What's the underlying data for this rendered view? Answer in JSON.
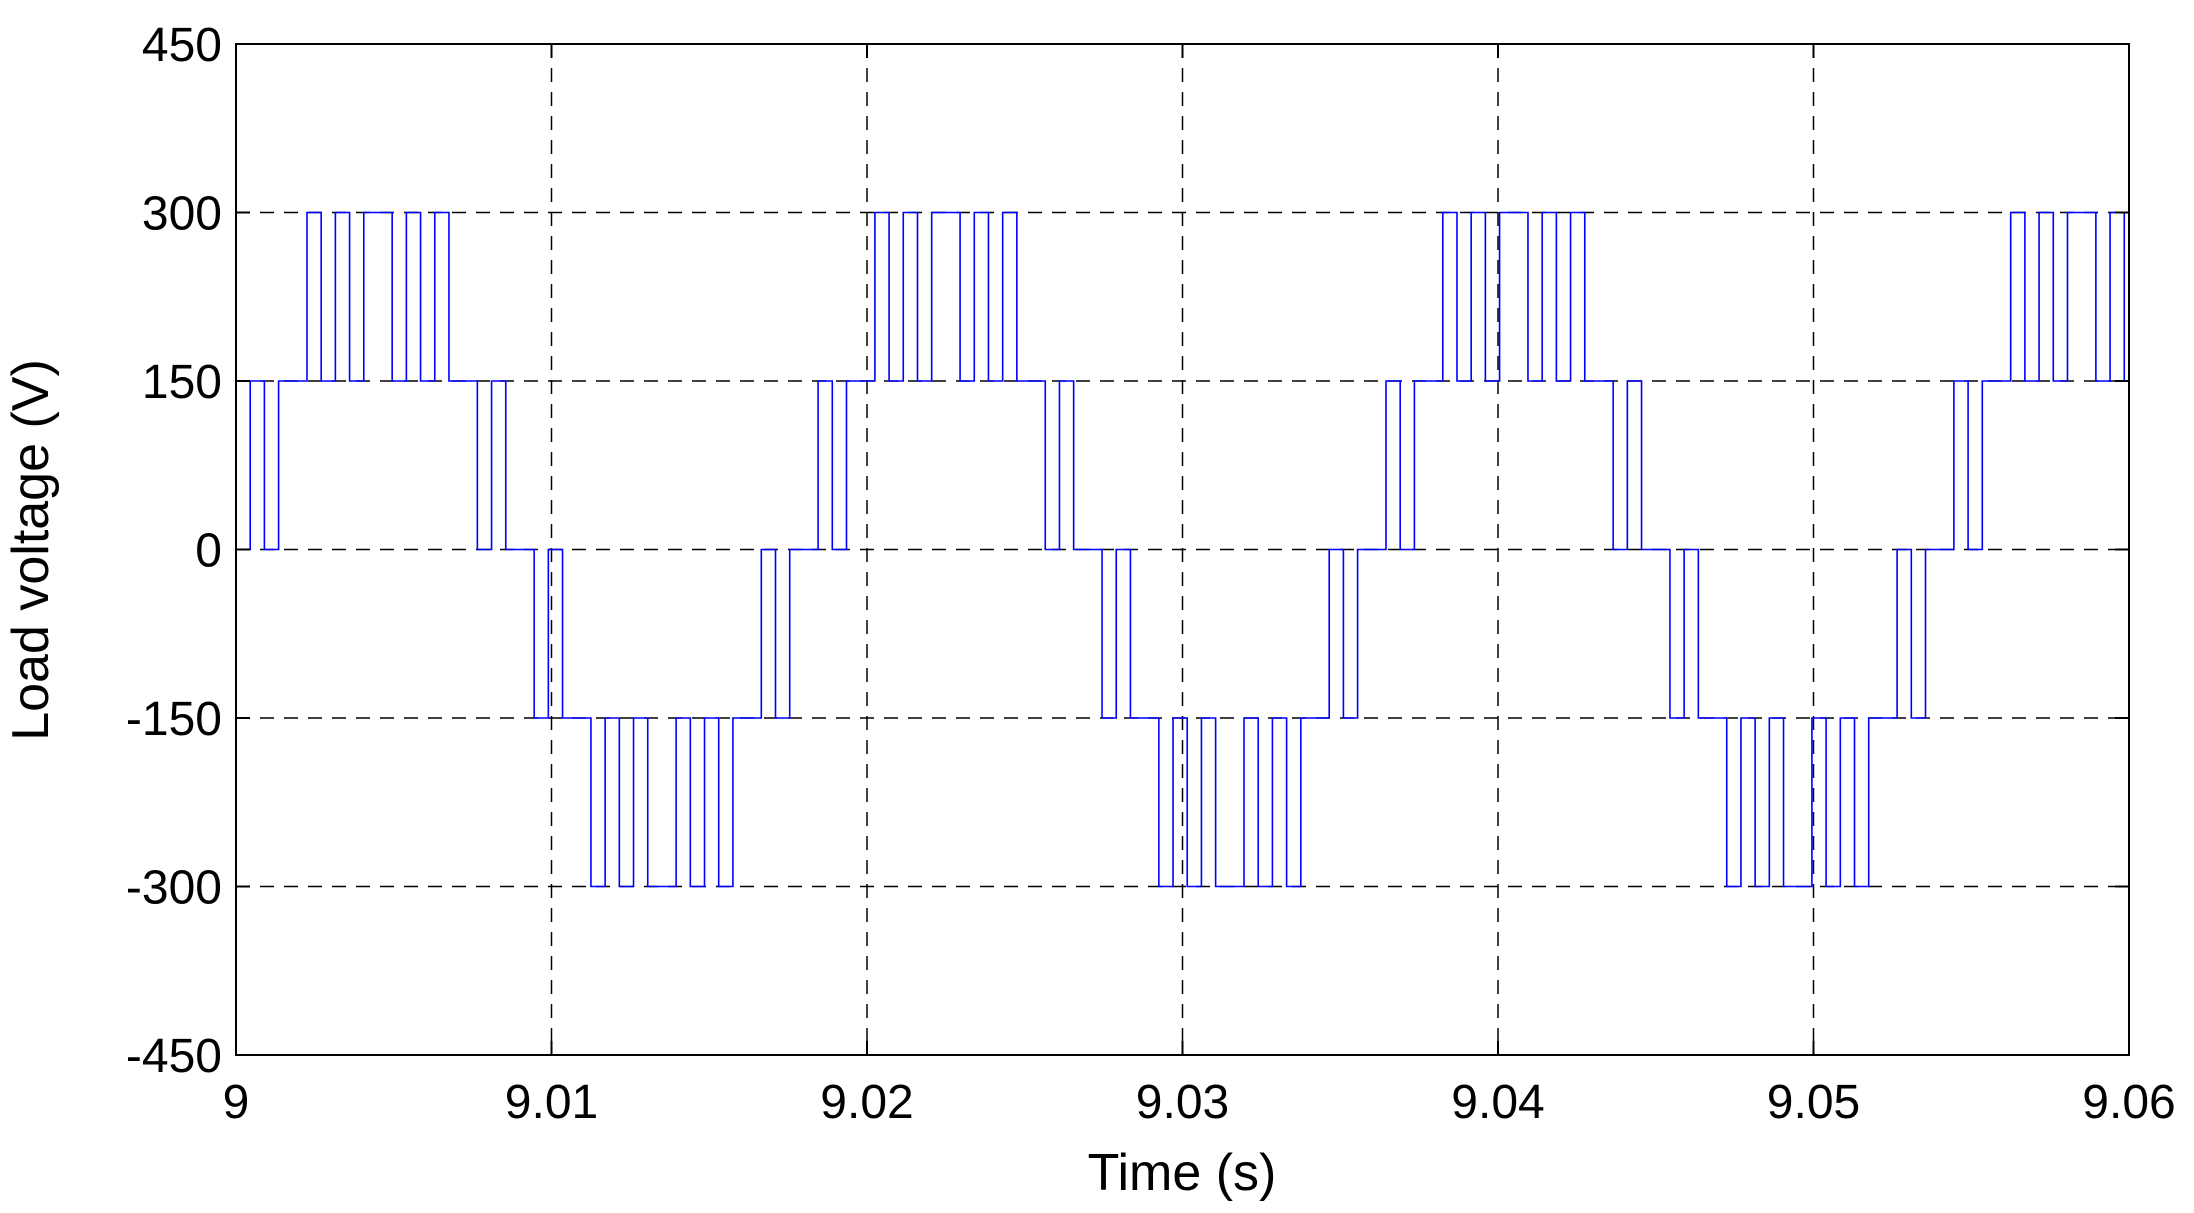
{
  "chart_data": {
    "type": "line",
    "title": "",
    "xlabel": "Time (s)",
    "ylabel": "Load voltage (V)",
    "xlim": [
      9,
      9.06
    ],
    "ylim": [
      -450,
      450
    ],
    "x_ticks": [
      "9",
      "9.01",
      "9.02",
      "9.03",
      "9.04",
      "9.05",
      "9.06"
    ],
    "x_tick_values": [
      9,
      9.01,
      9.02,
      9.03,
      9.04,
      9.05,
      9.06
    ],
    "y_ticks": [
      "450",
      "300",
      "150",
      "0",
      "-150",
      "-300",
      "-450"
    ],
    "y_tick_values": [
      450,
      300,
      150,
      0,
      -150,
      -300,
      -450
    ],
    "grid": true,
    "grid_style": "dashed",
    "legend": "none",
    "series_color": "#0000ff",
    "fundamental_period_s": 0.0167,
    "dc_levels": [
      -300,
      -150,
      0,
      150,
      300
    ],
    "series": [
      {
        "x": [
          9.0,
          9.00045,
          9.0009,
          9.00135,
          9.0018,
          9.00225,
          9.0027,
          9.00315,
          9.0036,
          9.00405,
          9.0045,
          9.00495,
          9.0054,
          9.00585,
          9.0063,
          9.00675,
          9.0072,
          9.00765,
          9.0081,
          9.00855,
          9.009,
          9.00945,
          9.0099,
          9.01035,
          9.0108,
          9.01125,
          9.0117,
          9.01215,
          9.0126,
          9.01305,
          9.0135,
          9.01395,
          9.0144,
          9.01485,
          9.0153,
          9.01575,
          9.0162,
          9.01665,
          9.0171,
          9.01755,
          9.018,
          9.01845,
          9.0189,
          9.01935,
          9.0198,
          9.02025,
          9.0207,
          9.02115,
          9.0216,
          9.02205,
          9.0225,
          9.02295,
          9.0234,
          9.02385,
          9.0243,
          9.02475,
          9.0252,
          9.02565,
          9.0261,
          9.02655,
          9.027,
          9.02745,
          9.0279,
          9.02835,
          9.0288,
          9.02925,
          9.0297,
          9.03015,
          9.0306,
          9.03105,
          9.0315,
          9.03195,
          9.0324,
          9.03285,
          9.0333,
          9.03375,
          9.0342,
          9.03465,
          9.0351,
          9.03555,
          9.036,
          9.03645,
          9.0369,
          9.03735,
          9.0378,
          9.03825,
          9.0387,
          9.03915,
          9.0396,
          9.04005,
          9.0405,
          9.04095,
          9.0414,
          9.04185,
          9.0423,
          9.04275,
          9.0432,
          9.04365,
          9.0441,
          9.04455,
          9.045,
          9.04545,
          9.0459,
          9.04635,
          9.0468,
          9.04725,
          9.0477,
          9.04815,
          9.0486,
          9.04905,
          9.0495,
          9.04995,
          9.0504,
          9.05085,
          9.0513,
          9.05175,
          9.0522,
          9.05265,
          9.0531,
          9.05355,
          9.054,
          9.05445,
          9.0549,
          9.05535,
          9.0558,
          9.05625,
          9.0567,
          9.05715,
          9.0576,
          9.05805,
          9.0585,
          9.05895,
          9.0594,
          9.05985
        ],
        "y": [
          0,
          150,
          0,
          150,
          150,
          300,
          150,
          300,
          150,
          300,
          300,
          150,
          300,
          150,
          300,
          150,
          150,
          0,
          150,
          0,
          0,
          -150,
          0,
          -150,
          -150,
          -300,
          -150,
          -300,
          -150,
          -300,
          -300,
          -150,
          -300,
          -150,
          -300,
          -150,
          -150,
          0,
          -150,
          0,
          0,
          150,
          0,
          150,
          150,
          300,
          150,
          300,
          150,
          300,
          300,
          150,
          300,
          150,
          300,
          150,
          150,
          0,
          150,
          0,
          0,
          -150,
          0,
          -150,
          -150,
          -300,
          -150,
          -300,
          -150,
          -300,
          -300,
          -150,
          -300,
          -150,
          -300,
          -150,
          -150,
          0,
          -150,
          0,
          0,
          150,
          0,
          150,
          150,
          300,
          150,
          300,
          150,
          300,
          300,
          150,
          300,
          150,
          300,
          150,
          150,
          0,
          150,
          0,
          0,
          -150,
          0,
          -150,
          -150,
          -300,
          -150,
          -300,
          -150,
          -300,
          -300,
          -150,
          -300,
          -150,
          -300,
          -150,
          -150,
          0,
          -150,
          0,
          0,
          150,
          0,
          150,
          150,
          300,
          150,
          300,
          150,
          300,
          300,
          150,
          300,
          150
        ]
      }
    ]
  }
}
